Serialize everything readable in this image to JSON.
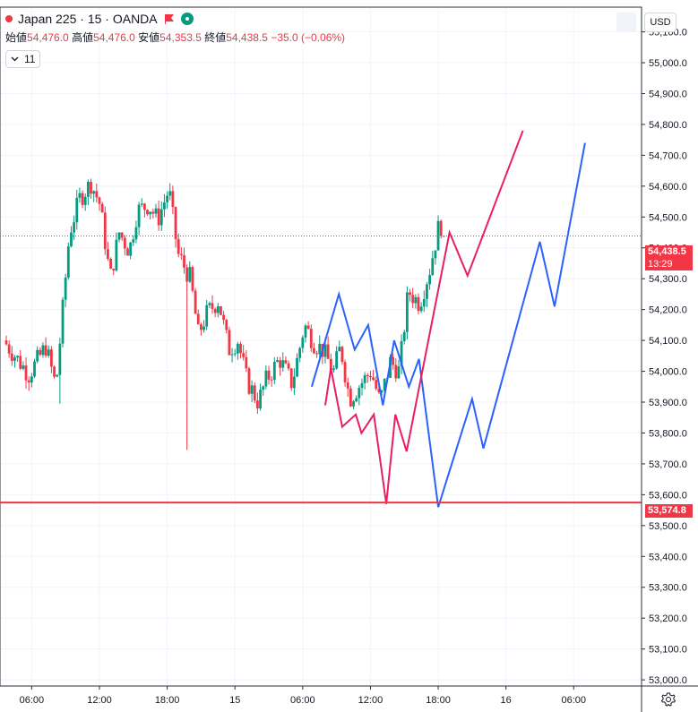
{
  "header": {
    "symbol": "Japan 225 · 15 · OANDA",
    "open_label": "始値",
    "open": "54,476.0",
    "high_label": "高値",
    "high": "54,476.0",
    "low_label": "安値",
    "low": "54,353.5",
    "close_label": "終値",
    "close": "54,438.5",
    "change": "−35.0 (−0.06%)",
    "indicator_count": "11"
  },
  "currency": "USD",
  "colors": {
    "up": "#089981",
    "down": "#f23645",
    "projection_blue": "#2962ff",
    "projection_pink": "#e91e63",
    "support_line": "#f23645",
    "grid": "#f0f3fa"
  },
  "price_tags": {
    "last_price": "54,438.5",
    "countdown": "13:29",
    "support": "53,574.8"
  },
  "chart_data": {
    "type": "candlestick",
    "y_axis": {
      "range": [
        52980,
        55180
      ],
      "ticks": [
        "55,100.0",
        "55,000.0",
        "54,900.0",
        "54,800.0",
        "54,700.0",
        "54,600.0",
        "54,500.0",
        "54,400.0",
        "54,300.0",
        "54,200.0",
        "54,100.0",
        "54,000.0",
        "53,900.0",
        "53,800.0",
        "53,700.0",
        "53,600.0",
        "53,500.0",
        "53,400.0",
        "53,300.0",
        "53,200.0",
        "53,100.0",
        "53,000.0"
      ]
    },
    "x_axis": {
      "ticks": [
        {
          "label": "06:00",
          "t": 6
        },
        {
          "label": "12:00",
          "t": 12
        },
        {
          "label": "18:00",
          "t": 18
        },
        {
          "label": "15",
          "t": 24
        },
        {
          "label": "06:00",
          "t": 30
        },
        {
          "label": "12:00",
          "t": 36
        },
        {
          "label": "18:00",
          "t": 42
        },
        {
          "label": "16",
          "t": 48
        },
        {
          "label": "06:00",
          "t": 54
        }
      ],
      "t_range": [
        3.75,
        58.5
      ]
    },
    "price_path": [
      [
        3.75,
        54100
      ],
      [
        6.0,
        53990
      ],
      [
        7.5,
        54080
      ],
      [
        8.4,
        53950
      ],
      [
        9.6,
        54450
      ],
      [
        10.5,
        54560
      ],
      [
        11.5,
        54610
      ],
      [
        12.3,
        54540
      ],
      [
        13.2,
        54300
      ],
      [
        14.0,
        54450
      ],
      [
        14.9,
        54390
      ],
      [
        15.6,
        54520
      ],
      [
        16.6,
        54540
      ],
      [
        17.4,
        54490
      ],
      [
        18.4,
        54590
      ],
      [
        19.2,
        54380
      ],
      [
        20.3,
        54300
      ],
      [
        21.0,
        54120
      ],
      [
        21.8,
        54190
      ],
      [
        22.8,
        54230
      ],
      [
        23.7,
        54070
      ],
      [
        24.5,
        54100
      ],
      [
        25.3,
        53970
      ],
      [
        26.3,
        53900
      ],
      [
        27.0,
        53970
      ],
      [
        28.2,
        54040
      ],
      [
        29.3,
        53960
      ],
      [
        29.9,
        54060
      ],
      [
        30.4,
        54150
      ],
      [
        31.3,
        54090
      ],
      [
        32.0,
        54070
      ],
      [
        33.0,
        54000
      ],
      [
        33.6,
        54080
      ],
      [
        34.4,
        53910
      ],
      [
        35.4,
        53960
      ],
      [
        36.3,
        54000
      ],
      [
        37.1,
        53900
      ],
      [
        38.0,
        54030
      ],
      [
        38.8,
        54000
      ],
      [
        39.6,
        54260
      ],
      [
        40.6,
        54220
      ],
      [
        41.5,
        54330
      ],
      [
        42.3,
        54470
      ],
      [
        42.5,
        54438.5
      ]
    ],
    "projections": [
      {
        "color": "blue",
        "points": [
          [
            30.8,
            53950
          ],
          [
            33.2,
            54250
          ],
          [
            34.6,
            54070
          ],
          [
            35.8,
            54150
          ],
          [
            37.1,
            53890
          ],
          [
            38.1,
            54100
          ],
          [
            39.4,
            53950
          ],
          [
            40.3,
            54040
          ],
          [
            42.0,
            53560
          ],
          [
            45.0,
            53910
          ],
          [
            46.0,
            53750
          ],
          [
            51.0,
            54420
          ],
          [
            52.3,
            54210
          ],
          [
            55.0,
            54740
          ]
        ]
      },
      {
        "color": "pink",
        "points": [
          [
            32.0,
            53890
          ],
          [
            32.5,
            54010
          ],
          [
            33.5,
            53820
          ],
          [
            34.7,
            53860
          ],
          [
            35.2,
            53800
          ],
          [
            36.3,
            53860
          ],
          [
            37.4,
            53570
          ],
          [
            38.2,
            53860
          ],
          [
            39.2,
            53740
          ],
          [
            43.0,
            54450
          ],
          [
            44.6,
            54310
          ],
          [
            49.5,
            54780
          ]
        ]
      }
    ],
    "support_level": 53574.8,
    "last_price": 54438.5
  }
}
